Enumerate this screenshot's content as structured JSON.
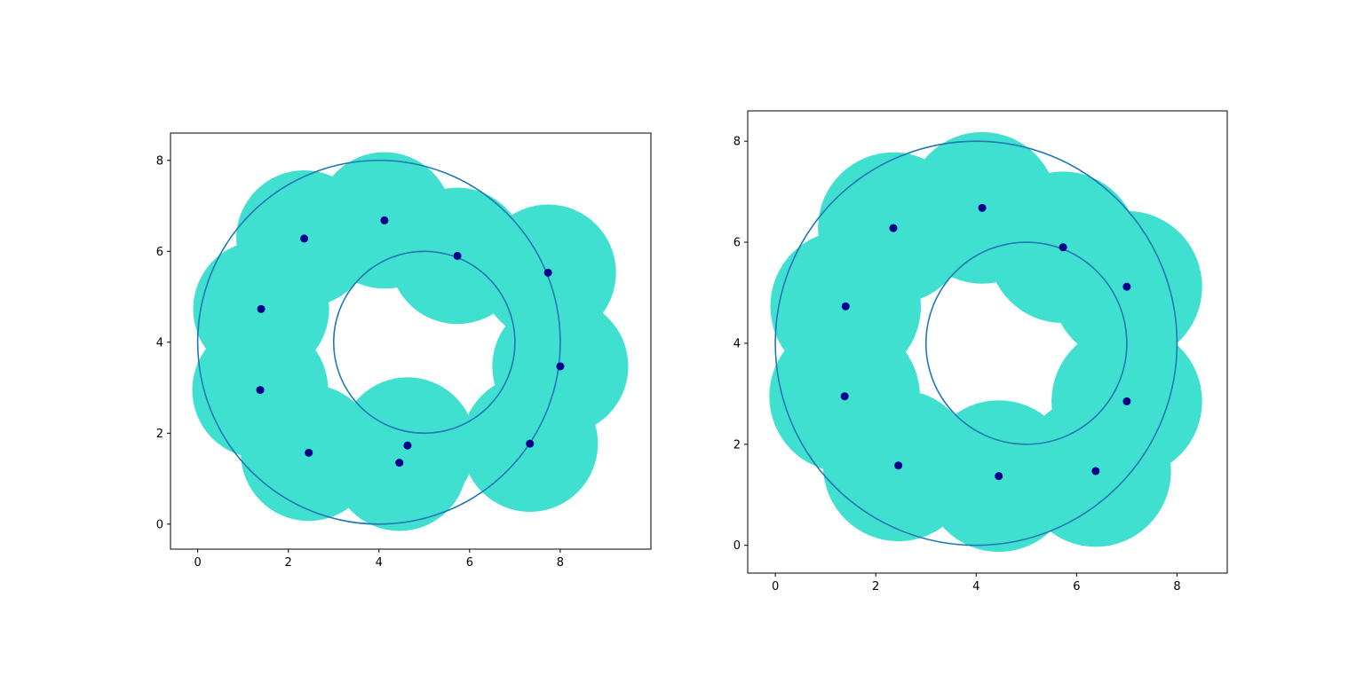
{
  "chart_data": [
    {
      "type": "scatter",
      "title": "",
      "xlabel": "",
      "ylabel": "",
      "xlim": [
        -0.6,
        10.0
      ],
      "ylim": [
        -0.55,
        8.6
      ],
      "xticks": [
        "0",
        "2",
        "4",
        "6",
        "8"
      ],
      "yticks": [
        "0",
        "2",
        "4",
        "6",
        "8"
      ],
      "grid": false,
      "legend": "none",
      "points": [
        {
          "x": 1.38,
          "y": 2.95
        },
        {
          "x": 2.45,
          "y": 1.57
        },
        {
          "x": 4.45,
          "y": 1.35
        },
        {
          "x": 4.63,
          "y": 1.73
        },
        {
          "x": 7.33,
          "y": 1.77
        },
        {
          "x": 8.0,
          "y": 3.47
        },
        {
          "x": 7.73,
          "y": 5.53
        },
        {
          "x": 5.73,
          "y": 5.9
        },
        {
          "x": 4.12,
          "y": 6.68
        },
        {
          "x": 2.35,
          "y": 6.28
        },
        {
          "x": 1.4,
          "y": 4.73
        }
      ],
      "coverage_radius": 1.5,
      "rings": [
        {
          "cx": 4.0,
          "cy": 4.0,
          "r": 4.0
        },
        {
          "cx": 5.0,
          "cy": 4.0,
          "r": 2.0
        }
      ],
      "colors": {
        "coverage": "#40e0d0",
        "point": "#00008b",
        "ring": "#1f77b4"
      }
    },
    {
      "type": "scatter",
      "title": "",
      "xlabel": "",
      "ylabel": "",
      "xlim": [
        -0.55,
        9.0
      ],
      "ylim": [
        -0.55,
        8.6
      ],
      "xticks": [
        "0",
        "2",
        "4",
        "6",
        "8"
      ],
      "yticks": [
        "0",
        "2",
        "4",
        "6",
        "8"
      ],
      "grid": false,
      "legend": "none",
      "points": [
        {
          "x": 1.38,
          "y": 2.95
        },
        {
          "x": 2.45,
          "y": 1.58
        },
        {
          "x": 4.45,
          "y": 1.37
        },
        {
          "x": 6.38,
          "y": 1.47
        },
        {
          "x": 7.0,
          "y": 2.85
        },
        {
          "x": 7.0,
          "y": 5.12
        },
        {
          "x": 5.73,
          "y": 5.9
        },
        {
          "x": 4.12,
          "y": 6.68
        },
        {
          "x": 2.35,
          "y": 6.28
        },
        {
          "x": 1.4,
          "y": 4.73
        }
      ],
      "coverage_radius": 1.5,
      "rings": [
        {
          "cx": 4.0,
          "cy": 4.0,
          "r": 4.0
        },
        {
          "cx": 5.0,
          "cy": 4.0,
          "r": 2.0
        }
      ],
      "colors": {
        "coverage": "#40e0d0",
        "point": "#00008b",
        "ring": "#1f77b4"
      }
    }
  ]
}
